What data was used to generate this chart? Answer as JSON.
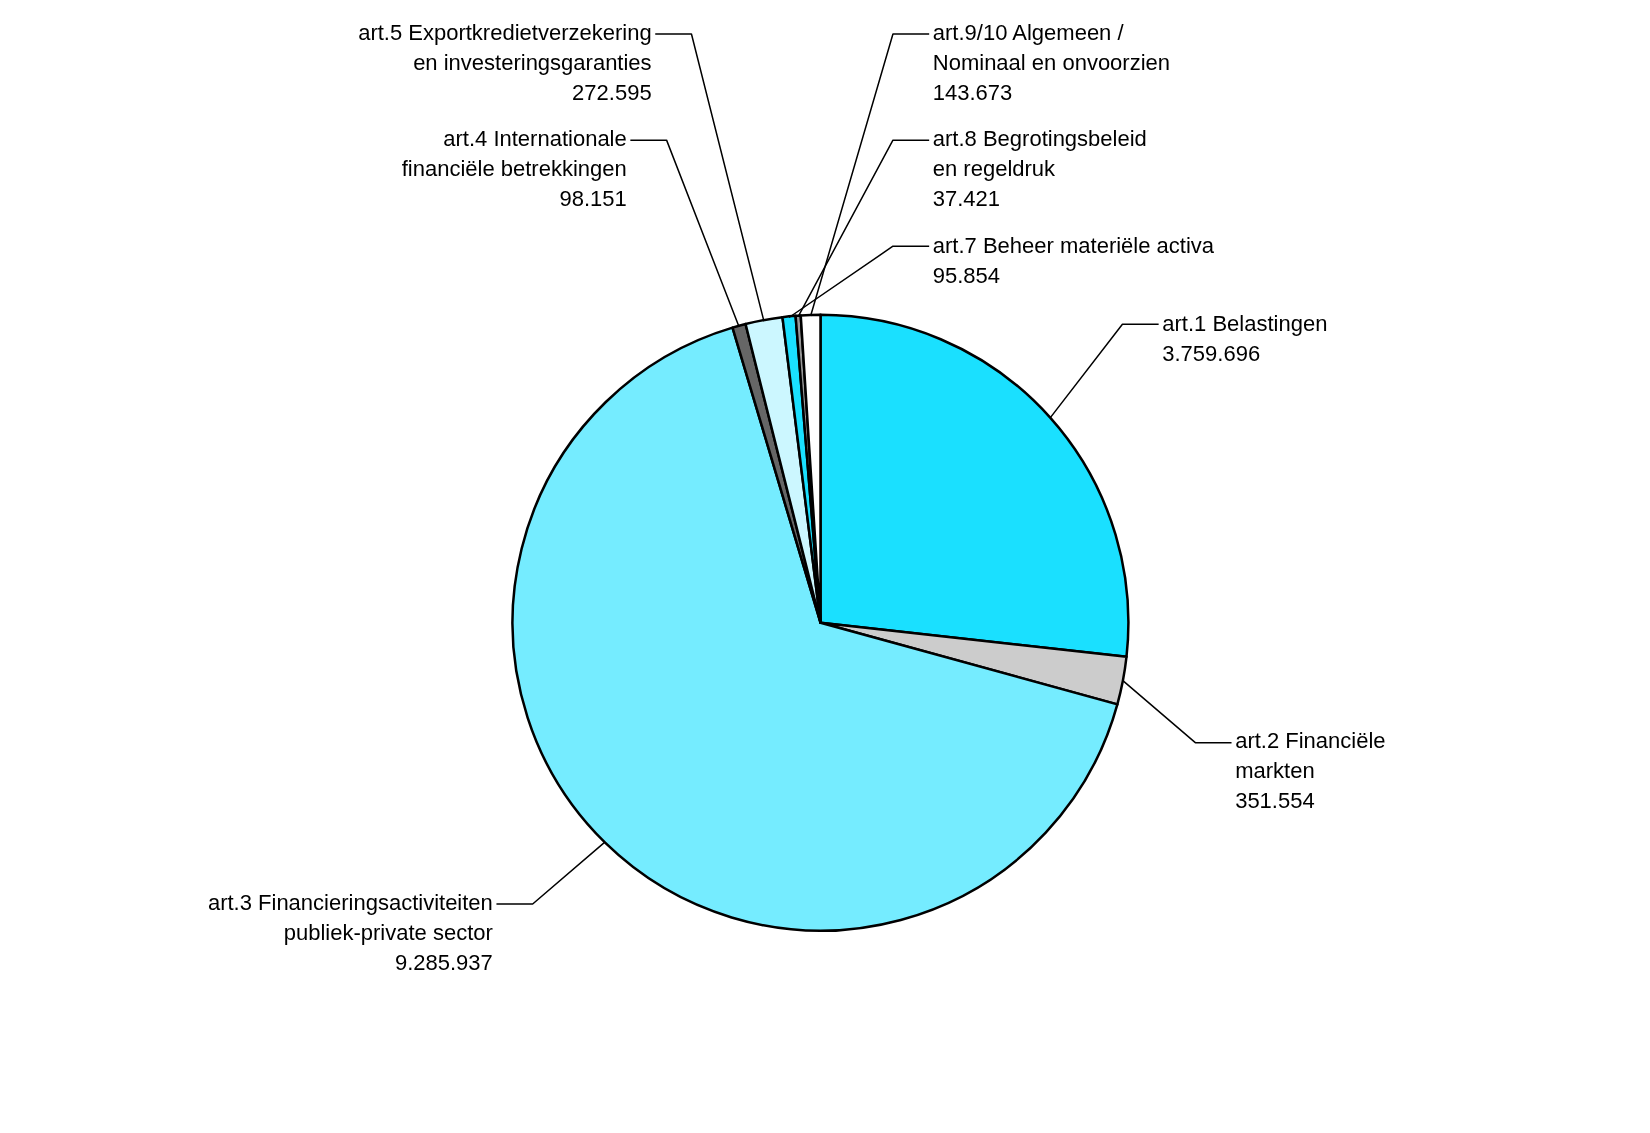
{
  "chart_data": {
    "type": "pie",
    "categories": [
      "art.1 Belastingen",
      "art.2 Financiële\nmarkten",
      "art.3 Financieringsactiviteiten\npubliek-private sector",
      "art.4 Internationale\nfinanciële betrekkingen",
      "art.5 Exportkredietverzekering\nen investeringsgaranties",
      "art.7 Beheer materiële activa",
      "art.8 Begrotingsbeleid\nen regeldruk",
      "art.9/10 Algemeen /\nNominaal en onvoorzien"
    ],
    "values": [
      3759696,
      351554,
      9285937,
      98151,
      272595,
      95854,
      37421,
      143673
    ],
    "value_labels": [
      "3.759.696",
      "351.554",
      "9.285.937",
      "98.151",
      "272.595",
      "95.854",
      "37.421",
      "143.673"
    ],
    "colors": [
      "#1ae0ff",
      "#cccccc",
      "#75ecff",
      "#666666",
      "#ccf7ff",
      "#1ae0ff",
      "#999999",
      "#ffffff"
    ]
  }
}
